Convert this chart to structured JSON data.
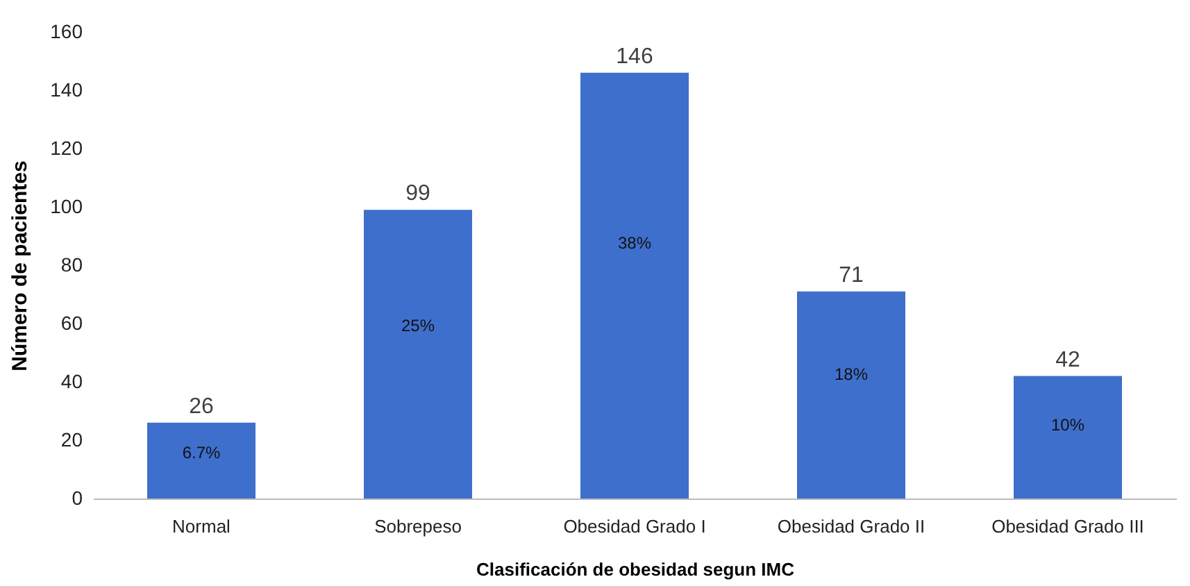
{
  "chart_data": {
    "type": "bar",
    "xlabel": "Clasificación de obesidad segun IMC",
    "ylabel": "Número de pacientes",
    "categories": [
      "Normal",
      "Sobrepeso",
      "Obesidad Grado I",
      "Obesidad Grado II",
      "Obesidad Grado III"
    ],
    "values": [
      26,
      99,
      146,
      71,
      42
    ],
    "color": "#3f6fcc",
    "data_labels": true,
    "ylim": [
      0,
      160
    ],
    "yticks": [
      0,
      20,
      40,
      60,
      80,
      100,
      120,
      140,
      160
    ],
    "grid": false,
    "annotations": [
      "6.7%",
      "25%",
      "38%",
      "18%",
      "10%"
    ]
  }
}
